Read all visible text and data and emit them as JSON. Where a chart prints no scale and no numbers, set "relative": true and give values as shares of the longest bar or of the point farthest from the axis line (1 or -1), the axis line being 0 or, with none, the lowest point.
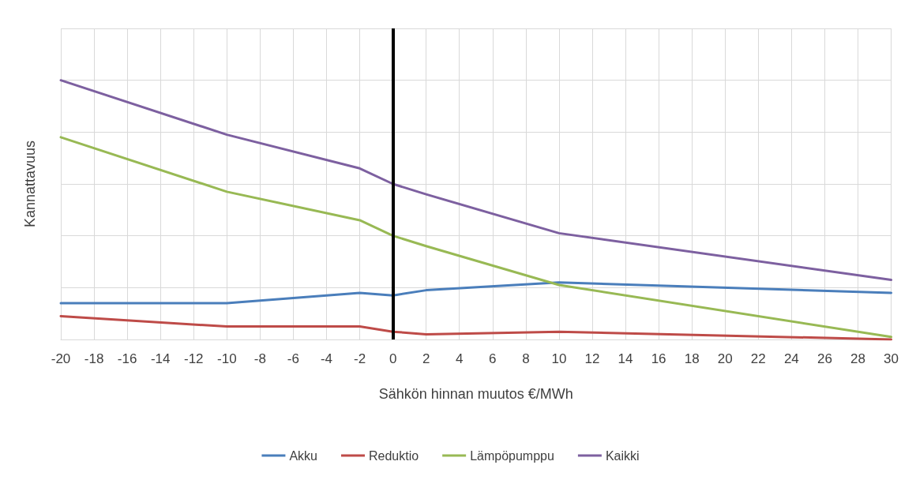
{
  "chart_data": {
    "type": "line",
    "relative": true,
    "xlabel": "Sähkön hinnan muutos €/MWh",
    "ylabel": "Kannattavuus",
    "xlim": [
      -20,
      30
    ],
    "xticks": [
      -20,
      -18,
      -16,
      -14,
      -12,
      -10,
      -8,
      -6,
      -4,
      -2,
      0,
      2,
      4,
      6,
      8,
      10,
      12,
      14,
      16,
      18,
      20,
      22,
      24,
      26,
      28,
      30
    ],
    "x": [
      -20,
      -10,
      -2,
      0,
      2,
      10,
      30
    ],
    "series": [
      {
        "name": "Akku",
        "color": "#4a7ebb",
        "values": [
          0.14,
          0.14,
          0.18,
          0.17,
          0.19,
          0.22,
          0.18
        ]
      },
      {
        "name": "Reduktio",
        "color": "#be4b48",
        "values": [
          0.09,
          0.05,
          0.05,
          0.03,
          0.02,
          0.03,
          0.0
        ]
      },
      {
        "name": "Lämpöpumppu",
        "color": "#98b954",
        "values": [
          0.78,
          0.57,
          0.46,
          0.4,
          0.36,
          0.21,
          0.01
        ]
      },
      {
        "name": "Kaikki",
        "color": "#7d60a0",
        "values": [
          1,
          0.79,
          0.66,
          0.6,
          0.56,
          0.41,
          0.23
        ]
      }
    ],
    "ref_lines": [
      {
        "axis": "x",
        "value": 0,
        "color": "#000000"
      }
    ],
    "grid": true,
    "legend": "bottom",
    "marker": "none",
    "line_style": "solid"
  }
}
